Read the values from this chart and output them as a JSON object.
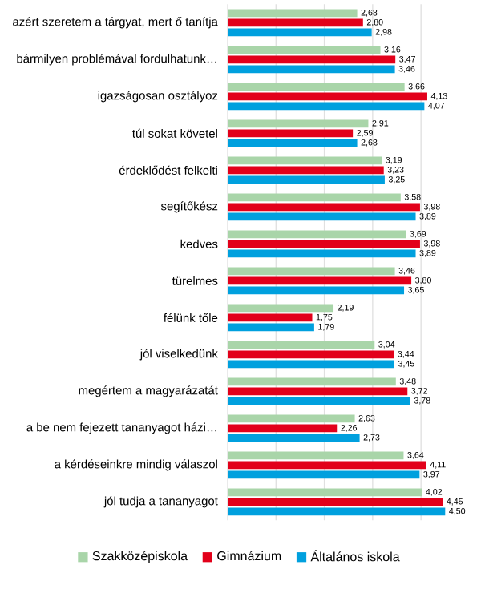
{
  "chart_data": {
    "type": "bar",
    "orientation": "horizontal",
    "categories": [
      "azért szeretem a tárgyat, mert ő tanítja",
      "bármilyen problémával fordulhatunk…",
      "igazságosan osztályoz",
      "túl sokat követel",
      "érdeklődést felkelti",
      "segítőkész",
      "kedves",
      "türelmes",
      "félünk tőle",
      "jól viselkedünk",
      "megértem a magyarázatát",
      "a be nem fejezett tananyagot házi…",
      "a kérdéseinkre mindig válaszol",
      "jól tudja a tananyagot"
    ],
    "series": [
      {
        "name": "Szakközépiskola",
        "color": "#a9d5a9",
        "values": [
          2.68,
          3.16,
          3.66,
          2.91,
          3.19,
          3.58,
          3.69,
          3.46,
          2.19,
          3.04,
          3.48,
          2.63,
          3.64,
          4.02
        ],
        "value_labels": [
          "2,68",
          "3,16",
          "3,66",
          "2,91",
          "3,19",
          "3,58",
          "3,69",
          "3,46",
          "2,19",
          "3,04",
          "3,48",
          "2,63",
          "3,64",
          "4,02"
        ]
      },
      {
        "name": "Gimnázium",
        "color": "#e2001a",
        "values": [
          2.8,
          3.47,
          4.13,
          2.59,
          3.23,
          3.98,
          3.98,
          3.8,
          1.75,
          3.44,
          3.72,
          2.26,
          4.11,
          4.45
        ],
        "value_labels": [
          "2,80",
          "3,47",
          "4,13",
          "2,59",
          "3,23",
          "3,98",
          "3,98",
          "3,80",
          "1,75",
          "3,44",
          "3,72",
          "2,26",
          "4,11",
          "4,45"
        ]
      },
      {
        "name": "Általános iskola",
        "color": "#00a0de",
        "values": [
          2.98,
          3.46,
          4.07,
          2.68,
          3.25,
          3.89,
          3.89,
          3.65,
          1.79,
          3.45,
          3.78,
          2.73,
          3.97,
          4.5
        ],
        "value_labels": [
          "2,98",
          "3,46",
          "4,07",
          "2,68",
          "3,25",
          "3,89",
          "3,89",
          "3,65",
          "1,79",
          "3,45",
          "3,78",
          "2,73",
          "3,97",
          "4,50"
        ]
      }
    ],
    "xlim": [
      0,
      4.6
    ],
    "xticks": [
      {
        "value": 0,
        "label": null
      },
      {
        "value": 1,
        "label": null
      },
      {
        "value": 2,
        "label": null
      },
      {
        "value": 3,
        "label": null
      },
      {
        "value": 4,
        "label": null
      }
    ],
    "grid": "x",
    "legend": "bottom",
    "tick_labels": "y"
  }
}
